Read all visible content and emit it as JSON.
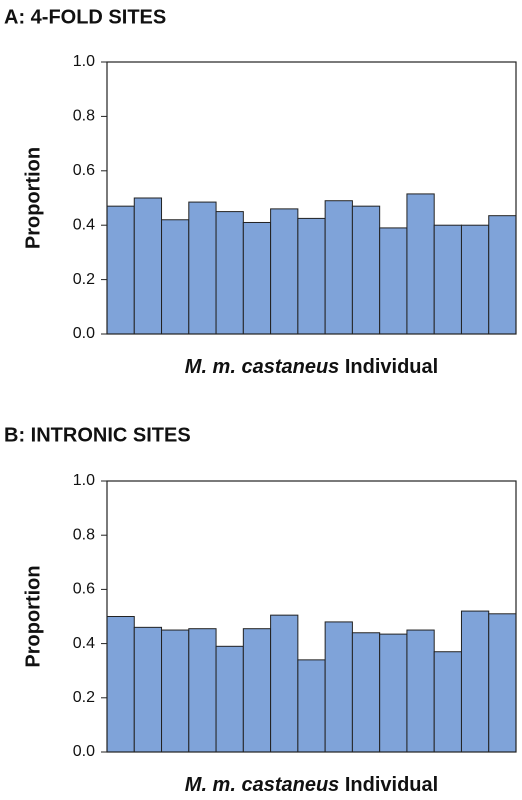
{
  "chart_data": [
    {
      "type": "bar",
      "title": "A: 4-FOLD SITES",
      "ylabel": "Proportion",
      "xlabel": {
        "species": "M. m. castaneus",
        "text": "Individual"
      },
      "categories": [
        null,
        null,
        null,
        null,
        null,
        null,
        null,
        null,
        null,
        null,
        null,
        null,
        null,
        null,
        null
      ],
      "values": [
        0.47,
        0.5,
        0.42,
        0.485,
        0.45,
        0.41,
        0.46,
        0.425,
        0.49,
        0.47,
        0.39,
        0.515,
        0.4,
        0.4,
        0.435
      ],
      "color": "#7fa3d9",
      "ylim": [
        0,
        1
      ],
      "yticks": [
        {
          "value": 0,
          "label": "0.0"
        },
        0.2,
        0.4,
        0.6,
        0.8,
        {
          "value": 1,
          "label": "1.0"
        }
      ]
    },
    {
      "type": "bar",
      "title": "B: INTRONIC SITES",
      "ylabel": "Proportion",
      "xlabel": {
        "species": "M. m. castaneus",
        "text": "Individual"
      },
      "categories": [
        null,
        null,
        null,
        null,
        null,
        null,
        null,
        null,
        null,
        null,
        null,
        null,
        null,
        null,
        null
      ],
      "values": [
        0.5,
        0.46,
        0.45,
        0.455,
        0.39,
        0.455,
        0.505,
        0.34,
        0.48,
        0.44,
        0.435,
        0.45,
        0.37,
        0.52,
        0.51
      ],
      "color": "#7fa3d9",
      "ylim": [
        0,
        1
      ],
      "yticks": [
        {
          "value": 0,
          "label": "0.0"
        },
        0.2,
        0.4,
        0.6,
        0.8,
        {
          "value": 1,
          "label": "1.0"
        }
      ]
    }
  ]
}
